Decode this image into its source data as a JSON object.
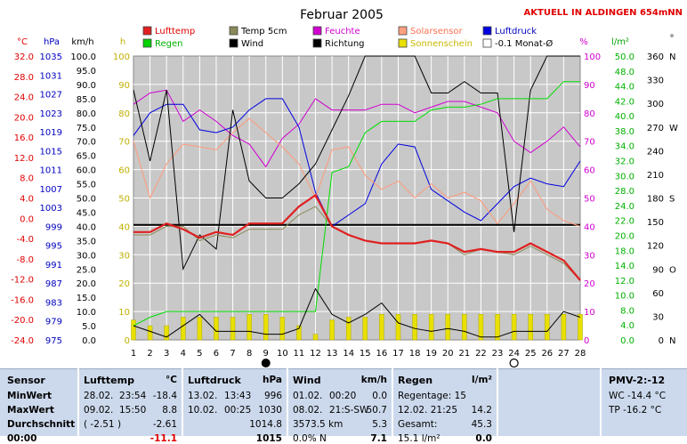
{
  "page": {
    "title": "Februar 2005",
    "location_banner": "AKTUELL IN ALDINGEN 654mNN"
  },
  "axes_units": {
    "temp": "°C",
    "pressure": "hPa",
    "wind": "km/h",
    "sun": "h",
    "percent": "%",
    "rain": "l/m²",
    "direction": "°"
  },
  "legend": [
    {
      "label": "Lufttemp",
      "color": "#e02020"
    },
    {
      "label": "Temp 5cm",
      "color": "#8a8a5a"
    },
    {
      "label": "Feuchte",
      "color": "#d000d0"
    },
    {
      "label": "Solarsensor",
      "color": "#ffa080"
    },
    {
      "label": "Luftdruck",
      "color": "#0000e0"
    },
    {
      "label": "Regen",
      "color": "#00d000"
    },
    {
      "label": "Wind",
      "color": "#000000"
    },
    {
      "label": "Richtung",
      "color": "#000000"
    },
    {
      "label": "Sonnenschein",
      "color": "#e8e000"
    },
    {
      "label": "-0.1 Monat-Ø",
      "color": "#ffffff"
    }
  ],
  "chart_data": {
    "type": "line",
    "x": [
      1,
      2,
      3,
      4,
      5,
      6,
      7,
      8,
      9,
      10,
      11,
      12,
      13,
      14,
      15,
      16,
      17,
      18,
      19,
      20,
      21,
      22,
      23,
      24,
      25,
      26,
      27,
      28
    ],
    "xlim": [
      1,
      28
    ],
    "main_ylim": [
      0,
      100
    ],
    "ticks": {
      "temp": [
        "32.0",
        "28.0",
        "24.0",
        "20.0",
        "16.0",
        "12.0",
        "8.0",
        "4.0",
        "0.0",
        "-4.0",
        "-8.0",
        "-12.0",
        "-16.0",
        "-20.0",
        "-24.0"
      ],
      "pressure": [
        "1035",
        "1031",
        "1027",
        "1023",
        "1019",
        "1015",
        "1011",
        "1007",
        "1003",
        "999",
        "995",
        "991",
        "987",
        "983",
        "979",
        "975"
      ],
      "wind": [
        "100.0",
        "95.0",
        "90.0",
        "85.0",
        "80.0",
        "75.0",
        "70.0",
        "65.0",
        "60.0",
        "55.0",
        "50.0",
        "45.0",
        "40.0",
        "35.0",
        "30.0",
        "25.0",
        "20.0",
        "15.0",
        "10.0",
        "5.0",
        "0.0"
      ],
      "sun": [
        "100",
        "90",
        "80",
        "70",
        "60",
        "50",
        "40",
        "30",
        "20",
        "10",
        "0"
      ],
      "percent": [
        "100",
        "90",
        "80",
        "70",
        "60",
        "50",
        "40",
        "30",
        "20",
        "10",
        "0"
      ],
      "rain": [
        "50.0",
        "48.0",
        "44.0",
        "42.0",
        "40.0",
        "38.0",
        "34.0",
        "32.0",
        "30.0",
        "28.0",
        "24.0",
        "22.0",
        "20.0",
        "18.0",
        "14.0",
        "12.0",
        "10.0",
        "8.0",
        "4.0",
        "0.0"
      ],
      "direction": [
        {
          "deg": "360",
          "dir": "N"
        },
        {
          "deg": "330",
          "dir": ""
        },
        {
          "deg": "300",
          "dir": ""
        },
        {
          "deg": "270",
          "dir": "W"
        },
        {
          "deg": "240",
          "dir": ""
        },
        {
          "deg": "210",
          "dir": ""
        },
        {
          "deg": "180",
          "dir": "S"
        },
        {
          "deg": "150",
          "dir": ""
        },
        {
          "deg": "120",
          "dir": ""
        },
        {
          "deg": "90",
          "dir": "O"
        },
        {
          "deg": "60",
          "dir": ""
        },
        {
          "deg": "30",
          "dir": ""
        },
        {
          "deg": "0",
          "dir": "N"
        }
      ]
    },
    "monthly_mean_line": 40.5,
    "series": [
      {
        "name": "Feuchte",
        "color": "#d000d0",
        "values": [
          83,
          87,
          88,
          77,
          81,
          77,
          72,
          69,
          61,
          71,
          76,
          85,
          81,
          81,
          81,
          83,
          83,
          80,
          82,
          84,
          84,
          82,
          80,
          70,
          66,
          70,
          75,
          68
        ]
      },
      {
        "name": "Luftdruck",
        "color": "#0000e0",
        "values": [
          72,
          80,
          83,
          83,
          74,
          73,
          75,
          81,
          85,
          85,
          75,
          52,
          40,
          44,
          48,
          62,
          69,
          68,
          53,
          49,
          45,
          42,
          48,
          54,
          57,
          55,
          54,
          63
        ]
      },
      {
        "name": "Solarsensor",
        "color": "#ff9a7a",
        "values": [
          70,
          50,
          62,
          69,
          68,
          67,
          73,
          78,
          73,
          68,
          62,
          50,
          67,
          68,
          58,
          53,
          56,
          50,
          55,
          50,
          52,
          49,
          41,
          48,
          56,
          46,
          42,
          40
        ]
      },
      {
        "name": "Richtung",
        "color": "#000000",
        "values": [
          88,
          63,
          88,
          25,
          37,
          32,
          81,
          56,
          50,
          50,
          55,
          62,
          74,
          86,
          100,
          100,
          100,
          100,
          87,
          87,
          91,
          87,
          87,
          38,
          88,
          100,
          100,
          100
        ]
      },
      {
        "name": "Regen",
        "color": "#00dd00",
        "values": [
          5,
          8,
          10,
          10,
          10,
          10,
          10,
          10,
          10,
          10,
          10,
          10,
          59,
          61,
          73,
          77,
          77,
          77,
          81,
          82,
          82,
          83,
          85,
          85,
          85,
          85,
          91,
          91
        ]
      },
      {
        "name": "Temp 5cm",
        "color": "#8a8a5a",
        "values": [
          37,
          37,
          40,
          40,
          35,
          37,
          36,
          39,
          39,
          39,
          44,
          47,
          40,
          37,
          35,
          34,
          34,
          34,
          35,
          34,
          30,
          32,
          31,
          30,
          33,
          30,
          27,
          21
        ]
      },
      {
        "name": "Lufttemp",
        "color": "#e02020",
        "values": [
          38,
          38,
          41,
          39,
          36,
          38,
          37,
          41,
          41,
          41,
          47,
          51,
          40,
          37,
          35,
          34,
          34,
          34,
          35,
          34,
          31,
          32,
          31,
          31,
          34,
          31,
          28,
          21
        ]
      },
      {
        "name": "Wind",
        "color": "#000000",
        "values": [
          5,
          3,
          1,
          5,
          9,
          3,
          3,
          3,
          2,
          2,
          4,
          18,
          9,
          6,
          9,
          13,
          6,
          4,
          3,
          4,
          3,
          1,
          1,
          3,
          3,
          3,
          10,
          8
        ]
      }
    ],
    "sunshine_bars": [
      7,
      5,
      5,
      8,
      8,
      8,
      8,
      9,
      9,
      8,
      5,
      2,
      7,
      8,
      8,
      9,
      9,
      9,
      9,
      9,
      9,
      9,
      9,
      9,
      9,
      9,
      9,
      9
    ],
    "moon_marks": [
      {
        "day": 9,
        "phase": "new"
      },
      {
        "day": 24,
        "phase": "full"
      }
    ]
  },
  "table": {
    "sensor": {
      "header": "Sensor",
      "rows": [
        "MinWert",
        "MaxWert",
        "Durchschnitt",
        "00:00"
      ]
    },
    "lufttemp": {
      "header": "Lufttemp",
      "unit": "°C",
      "min": {
        "date": "28.02.",
        "time": "23:54",
        "value": "-18.4"
      },
      "max": {
        "date": "09.02.",
        "time": "15:50",
        "value": "8.8"
      },
      "avg": {
        "note": "( -2.51 )",
        "value": "-2.61"
      },
      "cut": "-11.1"
    },
    "luftdruck": {
      "header": "Luftdruck",
      "unit": "hPa",
      "min": {
        "date": "13.02.",
        "time": "13:43",
        "value": "996"
      },
      "max": {
        "date": "10.02.",
        "time": "00:25",
        "value": "1030"
      },
      "avg": {
        "value": "1014.8"
      },
      "cut": "1015"
    },
    "wind": {
      "header": "Wind",
      "unit": "km/h",
      "min": {
        "date": "01.02.",
        "time": "00:20",
        "value": "0.0"
      },
      "max": {
        "date": "08.02.",
        "time": "21:S-SW",
        "value": "50.7"
      },
      "avg": {
        "note": "3573.5 km",
        "value": "5.3"
      },
      "cut_note": "0.0% N",
      "cut": "7.1"
    },
    "regen": {
      "header": "Regen",
      "unit": "l/m²",
      "row1": {
        "label": "Regentage: 15",
        "value": ""
      },
      "row2": {
        "label": "12.02.  21:25",
        "value": "14.2"
      },
      "row3": {
        "label": "Gesamt:",
        "value": "45.3"
      },
      "row4": {
        "label": "15.1 l/m²",
        "value": "0.0"
      }
    },
    "pmv": {
      "header": "PMV-2:-12",
      "wc": "WC -14.4 °C",
      "tp": "TP -16.2 °C"
    }
  }
}
